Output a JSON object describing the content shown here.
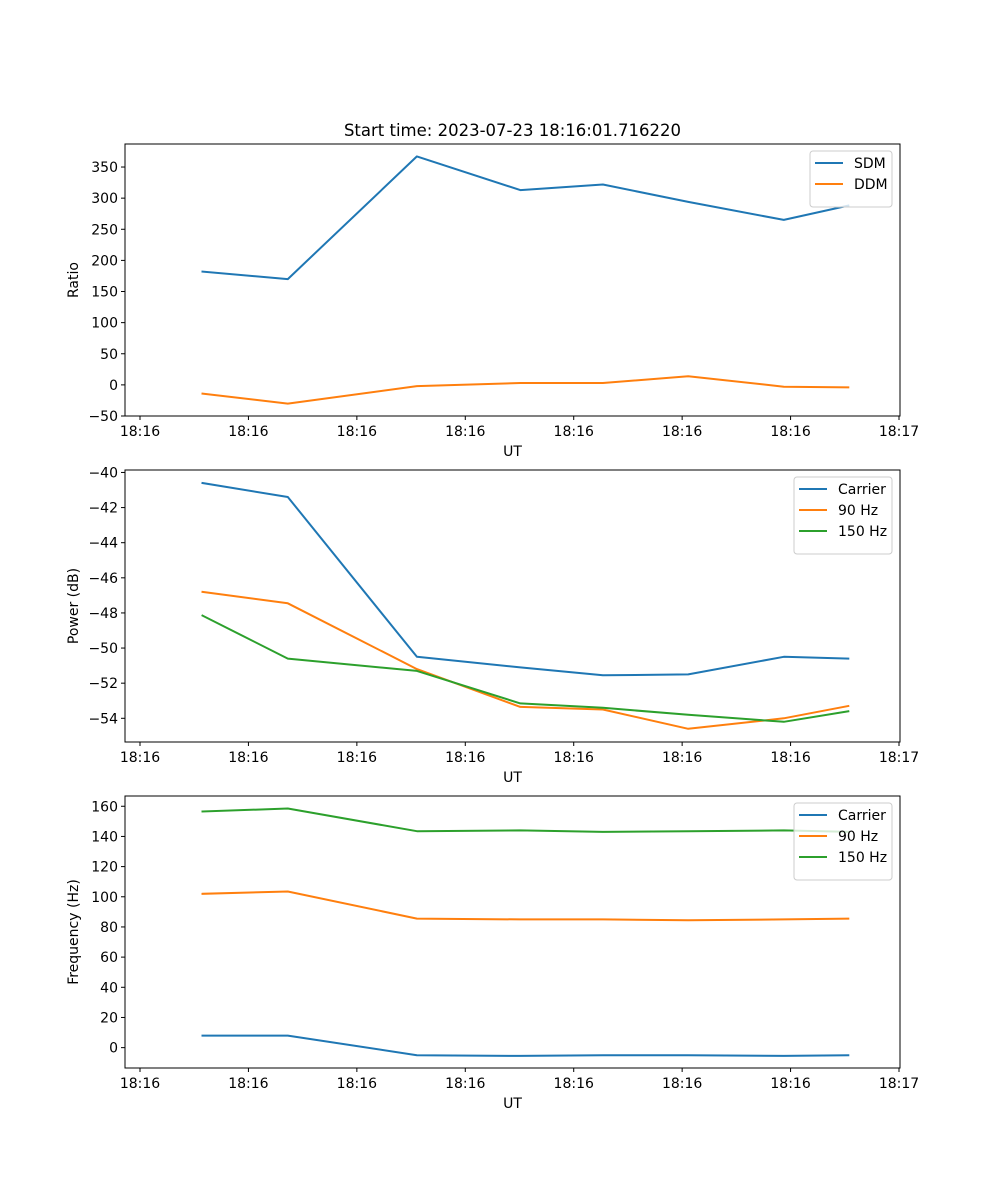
{
  "figure": {
    "title": "Start time: 2023-07-23 18:16:01.716220"
  },
  "chart_data": [
    {
      "type": "line",
      "title": "Start time: 2023-07-23 18:16:01.716220",
      "xlabel": "UT",
      "ylabel": "Ratio",
      "x_tick_labels": [
        "18:16",
        "18:16",
        "18:16",
        "18:16",
        "18:16",
        "18:16",
        "18:16",
        "18:17"
      ],
      "y_ticks": [
        -50,
        0,
        50,
        100,
        150,
        200,
        250,
        300,
        350
      ],
      "y_tick_labels": [
        "−50",
        "0",
        "50",
        "100",
        "150",
        "200",
        "250",
        "300",
        "350"
      ],
      "ylim": [
        -50,
        387
      ],
      "xlim": [
        -0.6,
        5.4
      ],
      "x": [
        0,
        0.66,
        1.66,
        2.46,
        3.1,
        3.76,
        4.5,
        5.0
      ],
      "series": [
        {
          "name": "SDM",
          "color": "#1f77b4",
          "values": [
            182,
            170,
            367,
            313,
            322,
            294,
            265,
            288
          ]
        },
        {
          "name": "DDM",
          "color": "#ff7f0e",
          "values": [
            -14,
            -30,
            -2,
            3,
            3,
            14,
            -3,
            -4
          ]
        }
      ],
      "legend": "top-right"
    },
    {
      "type": "line",
      "title": "",
      "xlabel": "UT",
      "ylabel": "Power (dB)",
      "x_tick_labels": [
        "18:16",
        "18:16",
        "18:16",
        "18:16",
        "18:16",
        "18:16",
        "18:16",
        "18:17"
      ],
      "y_ticks": [
        -54,
        -52,
        -50,
        -48,
        -46,
        -44,
        -42,
        -40
      ],
      "y_tick_labels": [
        "−54",
        "−52",
        "−50",
        "−48",
        "−46",
        "−44",
        "−42",
        "−40"
      ],
      "ylim": [
        -55.35,
        -39.86
      ],
      "xlim": [
        -0.6,
        5.4
      ],
      "x": [
        0,
        0.66,
        1.66,
        2.46,
        3.1,
        3.76,
        4.5,
        5.0
      ],
      "series": [
        {
          "name": "Carrier",
          "color": "#1f77b4",
          "values": [
            -40.6,
            -41.4,
            -50.5,
            -51.1,
            -51.55,
            -51.5,
            -50.5,
            -50.6
          ]
        },
        {
          "name": "90 Hz",
          "color": "#ff7f0e",
          "values": [
            -46.8,
            -47.45,
            -51.2,
            -53.35,
            -53.5,
            -54.6,
            -54.0,
            -53.3
          ]
        },
        {
          "name": "150 Hz",
          "color": "#2ca02c",
          "values": [
            -48.15,
            -50.6,
            -51.3,
            -53.15,
            -53.4,
            -53.8,
            -54.2,
            -53.6
          ]
        }
      ],
      "legend": "top-right"
    },
    {
      "type": "line",
      "title": "",
      "xlabel": "UT",
      "ylabel": "Frequency (Hz)",
      "x_tick_labels": [
        "18:16",
        "18:16",
        "18:16",
        "18:16",
        "18:16",
        "18:16",
        "18:16",
        "18:17"
      ],
      "y_ticks": [
        0,
        20,
        40,
        60,
        80,
        100,
        120,
        140,
        160
      ],
      "y_tick_labels": [
        "0",
        "20",
        "40",
        "60",
        "80",
        "100",
        "120",
        "140",
        "160"
      ],
      "ylim": [
        -13.5,
        166.8
      ],
      "xlim": [
        -0.6,
        5.4
      ],
      "x": [
        0,
        0.66,
        1.66,
        2.46,
        3.1,
        3.76,
        4.5,
        5.0
      ],
      "series": [
        {
          "name": "Carrier",
          "color": "#1f77b4",
          "values": [
            8,
            8,
            -5,
            -5.5,
            -5,
            -5,
            -5.5,
            -5
          ]
        },
        {
          "name": "90 Hz",
          "color": "#ff7f0e",
          "values": [
            102,
            103.5,
            85.5,
            85,
            85,
            84.5,
            85,
            85.5
          ]
        },
        {
          "name": "150 Hz",
          "color": "#2ca02c",
          "values": [
            156.5,
            158.5,
            143.5,
            144,
            143,
            143.5,
            144,
            143
          ]
        }
      ],
      "legend": "top-right"
    }
  ]
}
